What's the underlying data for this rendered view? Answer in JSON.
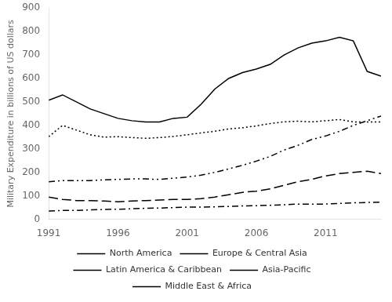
{
  "chart_data": {
    "type": "line",
    "ylabel": "Military Expenditure in billions of US dollars",
    "x": [
      1991,
      1992,
      1993,
      1994,
      1995,
      1996,
      1997,
      1998,
      1999,
      2000,
      2001,
      2002,
      2003,
      2004,
      2005,
      2006,
      2007,
      2008,
      2009,
      2010,
      2011,
      2012,
      2013,
      2014,
      2015
    ],
    "series": [
      {
        "name": "North America",
        "color": "#000000",
        "line_style": "solid",
        "values": [
          507,
          530,
          500,
          470,
          450,
          430,
          420,
          415,
          415,
          430,
          435,
          490,
          555,
          600,
          625,
          640,
          660,
          700,
          730,
          750,
          760,
          775,
          760,
          630,
          610
        ]
      },
      {
        "name": "Europe & Central Asia",
        "color": "#000000",
        "line_style": "dotted",
        "values": [
          352,
          400,
          380,
          360,
          350,
          352,
          348,
          345,
          348,
          353,
          360,
          368,
          375,
          385,
          390,
          398,
          408,
          415,
          418,
          415,
          420,
          425,
          415,
          415,
          415
        ]
      },
      {
        "name": "Latin America & Caribbean",
        "color": "#000000",
        "line_style": "dashdot",
        "values": [
          35,
          38,
          38,
          40,
          42,
          43,
          45,
          47,
          48,
          50,
          52,
          52,
          53,
          55,
          57,
          58,
          60,
          62,
          65,
          65,
          65,
          68,
          70,
          72,
          73
        ]
      },
      {
        "name": "Asia-Pacific",
        "color": "#000000",
        "line_style": "dashdotdot",
        "values": [
          160,
          165,
          165,
          165,
          168,
          170,
          172,
          172,
          170,
          175,
          180,
          188,
          200,
          215,
          230,
          248,
          268,
          295,
          315,
          340,
          355,
          375,
          400,
          420,
          440
        ]
      },
      {
        "name": "Middle East & Africa",
        "color": "#000000",
        "line_style": "longdash",
        "values": [
          95,
          85,
          80,
          80,
          78,
          75,
          78,
          80,
          82,
          85,
          85,
          88,
          95,
          105,
          115,
          120,
          130,
          145,
          160,
          170,
          185,
          195,
          200,
          205,
          195
        ]
      }
    ],
    "xlim": [
      1991,
      2015
    ],
    "xticks": [
      1991,
      1996,
      2001,
      2006,
      2011
    ],
    "ylim": [
      0,
      900
    ],
    "yticks": [
      0,
      100,
      200,
      300,
      400,
      500,
      600,
      700,
      800,
      900
    ],
    "grid": false,
    "legend": "bottom"
  }
}
